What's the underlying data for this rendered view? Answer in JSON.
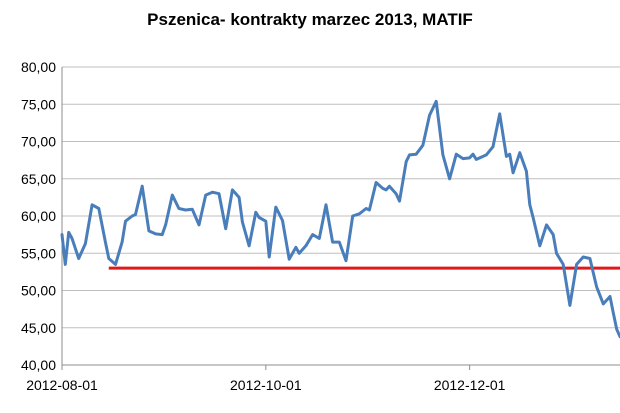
{
  "chart_data": {
    "type": "line",
    "title": "Pszenica- kontrakty marzec 2013, MATIF",
    "xlabel": "",
    "ylabel": "",
    "ylim": [
      40,
      80
    ],
    "yticks": [
      "80,00",
      "75,00",
      "70,00",
      "65,00",
      "60,00",
      "55,00",
      "50,00",
      "45,00",
      "40,00"
    ],
    "xticks": [
      "2012-08-01",
      "2012-10-01",
      "2012-12-01"
    ],
    "xtick_dates": [
      "2012-08-01",
      "2012-10-01",
      "2012-12-01"
    ],
    "xlim": [
      "2012-08-01",
      "2013-01-15"
    ],
    "grid": "horizontal",
    "legend": "none",
    "colors": {
      "series": "#4a7ebb",
      "reference": "#e0191b",
      "grid": "#bfbfbf",
      "axis": "#8c8c8c"
    },
    "series": [
      {
        "x": [
          "2012-08-01",
          "2012-08-02",
          "2012-08-03",
          "2012-08-04",
          "2012-08-06",
          "2012-08-08",
          "2012-08-10",
          "2012-08-12",
          "2012-08-14",
          "2012-08-15",
          "2012-08-17",
          "2012-08-19",
          "2012-08-20",
          "2012-08-22",
          "2012-08-23",
          "2012-08-25",
          "2012-08-27",
          "2012-08-29",
          "2012-08-31",
          "2012-09-01",
          "2012-09-03",
          "2012-09-05",
          "2012-09-07",
          "2012-09-09",
          "2012-09-11",
          "2012-09-13",
          "2012-09-15",
          "2012-09-17",
          "2012-09-19",
          "2012-09-21",
          "2012-09-23",
          "2012-09-24",
          "2012-09-26",
          "2012-09-28",
          "2012-09-29",
          "2012-10-01",
          "2012-10-02",
          "2012-10-04",
          "2012-10-06",
          "2012-10-08",
          "2012-10-10",
          "2012-10-11",
          "2012-10-13",
          "2012-10-15",
          "2012-10-17",
          "2012-10-19",
          "2012-10-21",
          "2012-10-23",
          "2012-10-25",
          "2012-10-27",
          "2012-10-29",
          "2012-10-31",
          "2012-11-01",
          "2012-11-03",
          "2012-11-05",
          "2012-11-06",
          "2012-11-07",
          "2012-11-09",
          "2012-11-10",
          "2012-11-12",
          "2012-11-13",
          "2012-11-15",
          "2012-11-17",
          "2012-11-19",
          "2012-11-21",
          "2012-11-23",
          "2012-11-25",
          "2012-11-27",
          "2012-11-29",
          "2012-12-01",
          "2012-12-02",
          "2012-12-03",
          "2012-12-04",
          "2012-12-06",
          "2012-12-08",
          "2012-12-10",
          "2012-12-12",
          "2012-12-13",
          "2012-12-14",
          "2012-12-16",
          "2012-12-18",
          "2012-12-19",
          "2012-12-20",
          "2012-12-22",
          "2012-12-24",
          "2012-12-26",
          "2012-12-27",
          "2012-12-29",
          "2012-12-31",
          "2013-01-02",
          "2013-01-04",
          "2013-01-06",
          "2013-01-08",
          "2013-01-10",
          "2013-01-12",
          "2013-01-13",
          "2013-01-14",
          "2013-01-15"
        ],
        "values": [
          57.5,
          53.5,
          57.8,
          57.0,
          54.3,
          56.3,
          61.5,
          61.0,
          56.5,
          54.3,
          53.5,
          56.5,
          59.3,
          60.0,
          60.2,
          64.0,
          58.0,
          57.6,
          57.5,
          58.8,
          62.8,
          61.0,
          60.8,
          60.9,
          58.8,
          62.8,
          63.2,
          63.0,
          58.3,
          63.5,
          62.5,
          59.2,
          56.0,
          60.5,
          59.8,
          59.3,
          54.5,
          61.2,
          59.4,
          54.2,
          55.8,
          55.0,
          56.0,
          57.5,
          57.0,
          61.5,
          56.5,
          56.5,
          54.0,
          60.0,
          60.3,
          61.0,
          60.8,
          64.5,
          63.7,
          63.5,
          64.0,
          63.0,
          62.0,
          67.3,
          68.2,
          68.3,
          69.5,
          73.5,
          75.4,
          68.2,
          65.0,
          68.3,
          67.7,
          67.8,
          68.3,
          67.6,
          67.8,
          68.2,
          69.3,
          73.7,
          68.0,
          68.3,
          65.8,
          68.5,
          66.0,
          61.5,
          59.8,
          56.0,
          58.8,
          57.5,
          55.0,
          53.5,
          48.0,
          53.5,
          54.5,
          54.3,
          50.5,
          48.2,
          49.2,
          47.0,
          44.8,
          43.8
        ]
      }
    ],
    "reference_line": {
      "y": 53.0,
      "x_start": "2012-08-15",
      "x_end": "2013-01-15"
    }
  }
}
